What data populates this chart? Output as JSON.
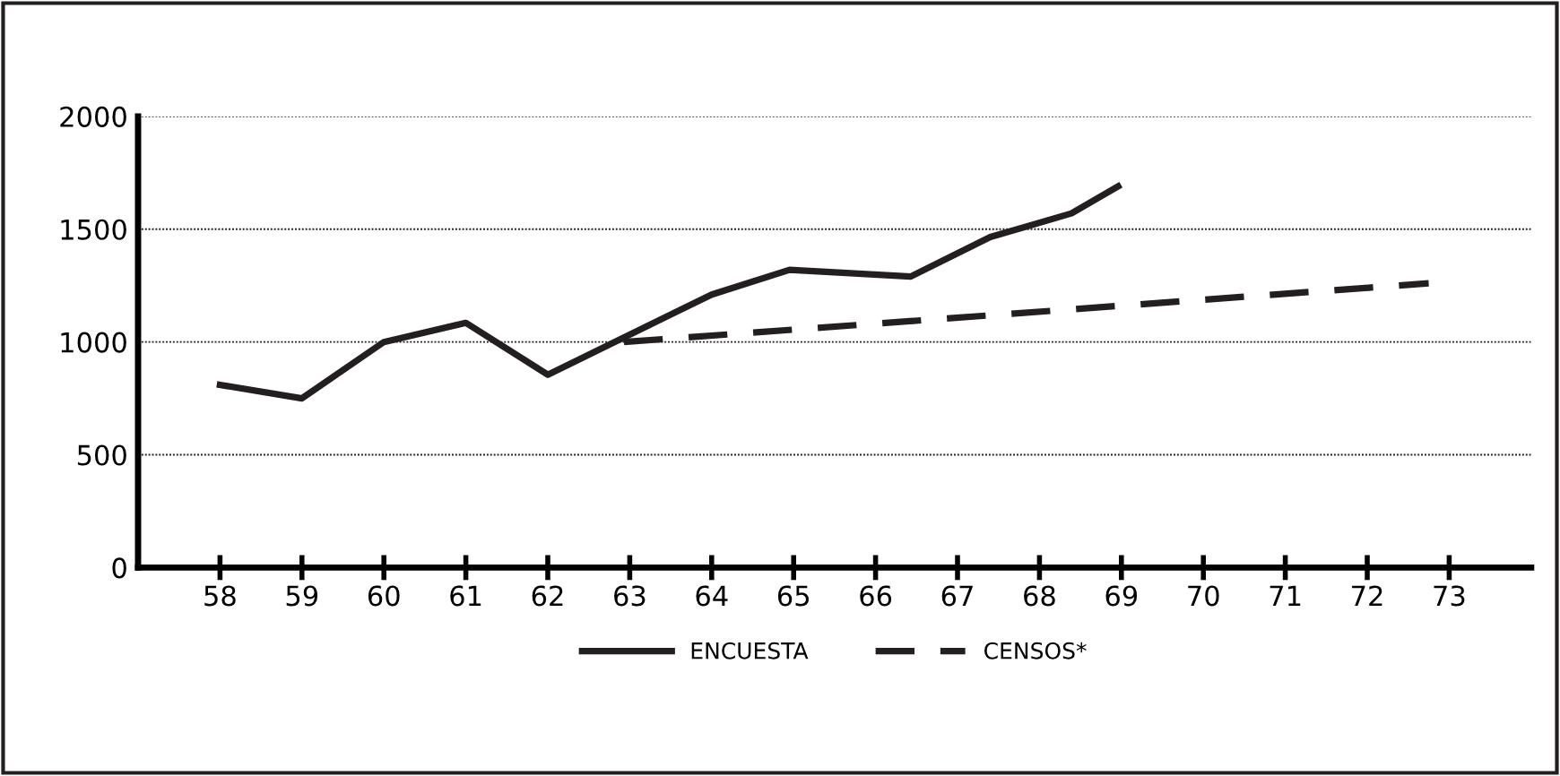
{
  "chart_data": {
    "type": "line",
    "x": [
      58,
      59,
      60,
      61,
      62,
      64,
      64.95,
      66.43,
      67.4,
      68.39,
      68.96
    ],
    "series": [
      {
        "name": "ENCUESTA",
        "color": "#231f20",
        "values": [
          810,
          750,
          1000,
          1085,
          855,
          1210,
          1320,
          1290,
          1465,
          1570,
          1690
        ],
        "line_style": "solid"
      },
      {
        "name": "CENSOS*",
        "color": "#231f20",
        "x": [
          62.93,
          72.75
        ],
        "values": [
          1000,
          1260
        ],
        "line_style": "dashed"
      }
    ],
    "xlim": [
      57,
      74
    ],
    "xticks": [
      58,
      59,
      60,
      61,
      62,
      63,
      64,
      65,
      66,
      67,
      68,
      69,
      70,
      71,
      72,
      73
    ],
    "ylim": [
      0,
      2000
    ],
    "yticks": [
      0,
      500,
      1000,
      1500,
      2000
    ],
    "grid": "y",
    "legend": "bottom",
    "marker": "none"
  }
}
